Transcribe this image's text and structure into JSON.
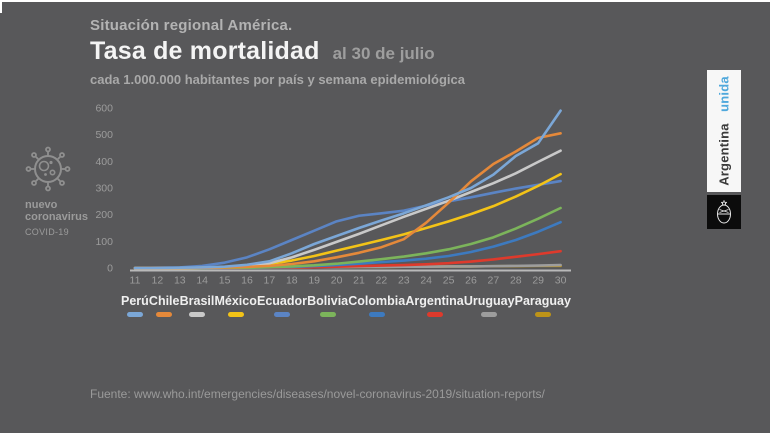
{
  "header": {
    "kicker": "Situación regional América.",
    "title": "Tasa de mortalidad",
    "date": "al 30 de julio",
    "subtitle": "cada 1.000.000 habitantes por país y semana epidemiológica"
  },
  "badge": {
    "line1": "nuevo",
    "line2": "coronavirus",
    "line3": "COVID-19"
  },
  "banner": {
    "brand": "Argentina",
    "brand_accent": "unida",
    "accent_color": "#4fa8dc"
  },
  "footer": {
    "source": "Fuente: www.who.int/emergencies/diseases/novel-coronavirus-2019/situation-reports/"
  },
  "colors": {
    "background": "#58585a",
    "axis": "#b9b9b9",
    "tick_text": "#9c9c9c",
    "legend_text": "#efefef"
  },
  "chart_data": {
    "type": "line",
    "title": "Tasa de mortalidad al 30 de julio",
    "xlabel": "",
    "ylabel": "",
    "x": [
      11,
      12,
      13,
      14,
      15,
      16,
      17,
      18,
      19,
      20,
      21,
      22,
      23,
      24,
      25,
      26,
      27,
      28,
      29,
      30
    ],
    "ylim": [
      0,
      600
    ],
    "yticks": [
      0,
      100,
      200,
      300,
      400,
      500,
      600
    ],
    "grid": false,
    "legend_position": "bottom",
    "series": [
      {
        "name": "Perú",
        "color": "#7ba7d7",
        "values": [
          0,
          0,
          1,
          2,
          5,
          12,
          25,
          55,
          90,
          120,
          150,
          178,
          205,
          235,
          265,
          300,
          350,
          420,
          468,
          590
        ]
      },
      {
        "name": "Chile",
        "color": "#e5893a",
        "values": [
          0,
          0,
          0,
          1,
          2,
          4,
          8,
          15,
          25,
          40,
          57,
          78,
          108,
          170,
          245,
          325,
          390,
          437,
          488,
          505
        ]
      },
      {
        "name": "Brasil",
        "color": "#c9c9c9",
        "values": [
          0,
          0,
          0,
          1,
          3,
          8,
          18,
          40,
          68,
          98,
          128,
          160,
          192,
          222,
          252,
          285,
          318,
          355,
          398,
          440
        ]
      },
      {
        "name": "México",
        "color": "#f3c317",
        "values": [
          0,
          0,
          0,
          1,
          3,
          7,
          15,
          28,
          45,
          65,
          85,
          105,
          126,
          150,
          175,
          202,
          232,
          268,
          308,
          352
        ]
      },
      {
        "name": "Ecuador",
        "color": "#5b84c4",
        "values": [
          0,
          1,
          2,
          8,
          20,
          40,
          70,
          105,
          140,
          175,
          196,
          205,
          215,
          234,
          250,
          265,
          282,
          298,
          312,
          326
        ]
      },
      {
        "name": "Bolivia",
        "color": "#7cb45b",
        "values": [
          0,
          0,
          0,
          0,
          1,
          1,
          3,
          6,
          10,
          16,
          24,
          33,
          43,
          55,
          70,
          90,
          115,
          148,
          185,
          225
        ]
      },
      {
        "name": "Colombia",
        "color": "#3d7abf",
        "values": [
          0,
          0,
          0,
          0,
          0,
          1,
          2,
          4,
          7,
          11,
          16,
          22,
          28,
          35,
          45,
          60,
          80,
          105,
          136,
          172
        ]
      },
      {
        "name": "Argentina",
        "color": "#de3a2c",
        "values": [
          0,
          0,
          0,
          0,
          0,
          1,
          1,
          2,
          3,
          5,
          7,
          9,
          11,
          14,
          18,
          24,
          32,
          42,
          52,
          63
        ]
      },
      {
        "name": "Uruguay",
        "color": "#9d9d9d",
        "values": [
          0,
          0,
          0,
          0,
          1,
          1,
          2,
          2,
          3,
          3,
          4,
          4,
          5,
          5,
          6,
          6,
          7,
          8,
          9,
          11
        ]
      },
      {
        "name": "Paraguay",
        "color": "#bd9318",
        "values": [
          0,
          0,
          0,
          1,
          1,
          1,
          2,
          2,
          3,
          3,
          4,
          4,
          5,
          5,
          6,
          6,
          7,
          7,
          8,
          8
        ]
      }
    ]
  }
}
